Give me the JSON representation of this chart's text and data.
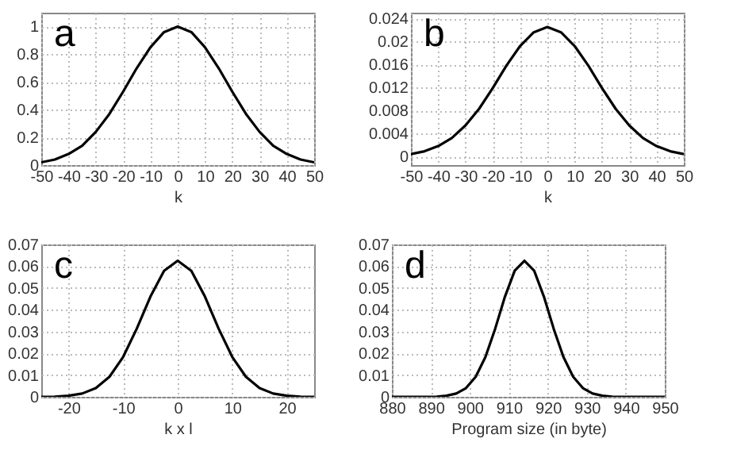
{
  "chart_data": [
    {
      "type": "line",
      "xlabel": "k",
      "annotations": [
        "a"
      ],
      "grid": true,
      "xlim": [
        -50,
        50
      ],
      "ylim": [
        0,
        1.1
      ],
      "xticks": [
        -50,
        -40,
        -30,
        -20,
        -10,
        0,
        10,
        20,
        30,
        40,
        50
      ],
      "yticks": [
        0,
        0.2,
        0.4,
        0.6,
        0.8,
        1
      ],
      "x": [
        -50,
        -45,
        -40,
        -35,
        -30,
        -25,
        -20,
        -15,
        -10,
        -5,
        0,
        5,
        10,
        15,
        20,
        25,
        30,
        35,
        40,
        45,
        50
      ],
      "series": [
        {
          "color": "#000000",
          "values": [
            0.02,
            0.04,
            0.08,
            0.14,
            0.24,
            0.37,
            0.53,
            0.7,
            0.85,
            0.96,
            1,
            0.96,
            0.85,
            0.7,
            0.53,
            0.37,
            0.24,
            0.14,
            0.08,
            0.04,
            0.02
          ]
        }
      ]
    },
    {
      "type": "line",
      "xlabel": "k",
      "annotations": [
        "b"
      ],
      "grid": true,
      "xlim": [
        -50,
        50
      ],
      "ylim": [
        -0.0015,
        0.025
      ],
      "xticks": [
        -50,
        -40,
        -30,
        -20,
        -10,
        0,
        10,
        20,
        30,
        40,
        50
      ],
      "yticks": [
        0,
        0.004,
        0.008,
        0.012,
        0.016,
        0.02,
        0.024
      ],
      "x": [
        -50,
        -45,
        -40,
        -35,
        -30,
        -25,
        -20,
        -15,
        -10,
        -5,
        0,
        5,
        10,
        15,
        20,
        25,
        30,
        35,
        40,
        45,
        50
      ],
      "series": [
        {
          "color": "#000000",
          "values": [
            0.0004,
            0.0009,
            0.0018,
            0.0032,
            0.0054,
            0.0083,
            0.0119,
            0.0158,
            0.0192,
            0.0216,
            0.0225,
            0.0216,
            0.0192,
            0.0158,
            0.0119,
            0.0083,
            0.0054,
            0.0032,
            0.0018,
            0.0009,
            0.0004
          ]
        }
      ]
    },
    {
      "type": "line",
      "xlabel": "k x l",
      "annotations": [
        "c"
      ],
      "grid": true,
      "xlim": [
        -25,
        25
      ],
      "ylim": [
        0,
        0.07
      ],
      "xticks": [
        -20,
        -10,
        0,
        10,
        20
      ],
      "yticks": [
        0,
        0.01,
        0.02,
        0.03,
        0.04,
        0.05,
        0.06,
        0.07
      ],
      "x": [
        -25,
        -22.5,
        -20,
        -17.5,
        -15,
        -12.5,
        -10,
        -7.5,
        -5,
        -2.5,
        0,
        2.5,
        5,
        7.5,
        10,
        12.5,
        15,
        17.5,
        20,
        22.5,
        25
      ],
      "series": [
        {
          "color": "#000000",
          "values": [
            0,
            0.0001,
            0.0005,
            0.0015,
            0.004,
            0.0092,
            0.0183,
            0.0313,
            0.046,
            0.0579,
            0.0625,
            0.0579,
            0.046,
            0.0313,
            0.0183,
            0.0092,
            0.004,
            0.0015,
            0.0005,
            0.0001,
            0
          ]
        }
      ]
    },
    {
      "type": "line",
      "xlabel": "Program size (in byte)",
      "annotations": [
        "d"
      ],
      "grid": true,
      "xlim": [
        880,
        950
      ],
      "ylim": [
        0,
        0.07
      ],
      "xticks": [
        880,
        890,
        900,
        910,
        920,
        930,
        940,
        950
      ],
      "yticks": [
        0,
        0.01,
        0.02,
        0.03,
        0.04,
        0.05,
        0.06,
        0.07
      ],
      "x": [
        880,
        889,
        891.5,
        894,
        896.5,
        899,
        901.5,
        904,
        906.5,
        909,
        911.5,
        914,
        916.5,
        919,
        921.5,
        924,
        926.5,
        929,
        931.5,
        934,
        936.5,
        939,
        950
      ],
      "series": [
        {
          "color": "#000000",
          "values": [
            0,
            0,
            0.0001,
            0.0005,
            0.0015,
            0.004,
            0.0092,
            0.0183,
            0.0313,
            0.046,
            0.0579,
            0.0625,
            0.0579,
            0.046,
            0.0313,
            0.0183,
            0.0092,
            0.004,
            0.0015,
            0.0005,
            0.0001,
            0,
            0
          ]
        }
      ]
    }
  ]
}
